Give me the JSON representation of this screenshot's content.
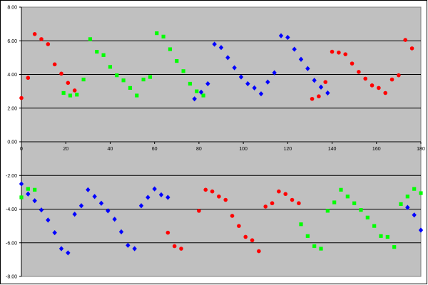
{
  "chart_data": {
    "type": "scatter",
    "title": "",
    "xlabel": "",
    "ylabel": "",
    "xlim": [
      0,
      180
    ],
    "ylim": [
      -8,
      8
    ],
    "x_ticks": [
      0,
      20,
      40,
      60,
      80,
      100,
      120,
      140,
      160,
      180
    ],
    "y_ticks": [
      8,
      6,
      4,
      2,
      0,
      -2,
      -4,
      -6,
      -8
    ],
    "y_tick_labels": [
      "8.00",
      "6.00",
      "4.00",
      "2.00",
      "0.00",
      "-2.00",
      "-4.00",
      "-6.00",
      "-8.00"
    ],
    "grid": "horizontal major gridlines",
    "legend": "none",
    "plot_background": "#c0c0c0",
    "series": [
      {
        "color": "#ff0000",
        "marker": "circle",
        "points": [
          [
            0,
            2.6
          ],
          [
            3,
            3.8
          ],
          [
            6,
            6.4
          ],
          [
            9,
            6.1
          ],
          [
            12,
            5.8
          ],
          [
            15,
            4.6
          ],
          [
            18,
            4.05
          ],
          [
            21,
            3.5
          ],
          [
            24,
            3.05
          ],
          [
            80,
            -4.1
          ],
          [
            83,
            -2.85
          ],
          [
            86,
            -2.95
          ],
          [
            89,
            -3.25
          ],
          [
            92,
            -3.45
          ],
          [
            95,
            -4.4
          ],
          [
            98,
            -5.0
          ],
          [
            101,
            -5.65
          ],
          [
            104,
            -5.85
          ],
          [
            107,
            -6.5
          ],
          [
            110,
            -3.85
          ],
          [
            113,
            -3.65
          ],
          [
            116,
            -2.95
          ],
          [
            119,
            -3.1
          ],
          [
            122,
            -3.45
          ],
          [
            125,
            -3.65
          ],
          [
            66,
            -5.4
          ],
          [
            69,
            -6.2
          ],
          [
            72,
            -6.35
          ],
          [
            131,
            2.55
          ],
          [
            134,
            2.7
          ],
          [
            137,
            3.55
          ],
          [
            140,
            5.35
          ],
          [
            143,
            5.3
          ],
          [
            146,
            5.2
          ],
          [
            149,
            4.65
          ],
          [
            152,
            4.15
          ],
          [
            155,
            3.75
          ],
          [
            158,
            3.35
          ],
          [
            161,
            3.2
          ],
          [
            164,
            2.9
          ],
          [
            167,
            3.7
          ],
          [
            170,
            3.95
          ],
          [
            173,
            6.05
          ],
          [
            176,
            5.55
          ]
        ]
      },
      {
        "color": "#00ff00",
        "marker": "square",
        "points": [
          [
            19,
            2.9
          ],
          [
            22,
            2.75
          ],
          [
            25,
            2.8
          ],
          [
            28,
            3.7
          ],
          [
            31,
            6.1
          ],
          [
            34,
            5.35
          ],
          [
            37,
            5.15
          ],
          [
            40,
            4.45
          ],
          [
            43,
            3.95
          ],
          [
            46,
            3.65
          ],
          [
            49,
            3.2
          ],
          [
            52,
            2.75
          ],
          [
            55,
            3.7
          ],
          [
            58,
            3.85
          ],
          [
            61,
            6.45
          ],
          [
            64,
            6.25
          ],
          [
            67,
            5.5
          ],
          [
            70,
            4.8
          ],
          [
            73,
            4.2
          ],
          [
            76,
            3.45
          ],
          [
            79,
            3.0
          ],
          [
            82,
            2.75
          ],
          [
            0,
            -3.3
          ],
          [
            3,
            -2.8
          ],
          [
            6,
            -2.85
          ],
          [
            126,
            -4.9
          ],
          [
            129,
            -5.6
          ],
          [
            132,
            -6.2
          ],
          [
            135,
            -6.35
          ],
          [
            138,
            -4.1
          ],
          [
            141,
            -3.6
          ],
          [
            144,
            -2.85
          ],
          [
            147,
            -3.25
          ],
          [
            150,
            -3.65
          ],
          [
            153,
            -4.05
          ],
          [
            156,
            -4.5
          ],
          [
            159,
            -5.0
          ],
          [
            162,
            -5.6
          ],
          [
            165,
            -5.65
          ],
          [
            168,
            -6.25
          ],
          [
            171,
            -3.7
          ],
          [
            174,
            -3.25
          ],
          [
            177,
            -2.8
          ],
          [
            180,
            -3.05
          ]
        ]
      },
      {
        "color": "#0000ff",
        "marker": "diamond",
        "points": [
          [
            78,
            2.55
          ],
          [
            81,
            2.95
          ],
          [
            84,
            3.45
          ],
          [
            87,
            5.8
          ],
          [
            90,
            5.6
          ],
          [
            93,
            5.0
          ],
          [
            96,
            4.4
          ],
          [
            99,
            3.85
          ],
          [
            102,
            3.45
          ],
          [
            105,
            3.2
          ],
          [
            108,
            2.85
          ],
          [
            111,
            3.55
          ],
          [
            114,
            4.1
          ],
          [
            117,
            6.3
          ],
          [
            120,
            6.2
          ],
          [
            123,
            5.5
          ],
          [
            126,
            4.9
          ],
          [
            129,
            4.35
          ],
          [
            132,
            3.65
          ],
          [
            135,
            3.25
          ],
          [
            138,
            2.9
          ],
          [
            0,
            -2.5
          ],
          [
            3,
            -3.1
          ],
          [
            6,
            -3.5
          ],
          [
            9,
            -4.05
          ],
          [
            12,
            -4.65
          ],
          [
            15,
            -5.4
          ],
          [
            18,
            -6.35
          ],
          [
            21,
            -6.6
          ],
          [
            24,
            -4.3
          ],
          [
            27,
            -3.8
          ],
          [
            30,
            -2.85
          ],
          [
            33,
            -3.25
          ],
          [
            36,
            -3.65
          ],
          [
            39,
            -4.1
          ],
          [
            42,
            -4.6
          ],
          [
            45,
            -5.35
          ],
          [
            48,
            -6.15
          ],
          [
            51,
            -6.35
          ],
          [
            54,
            -3.8
          ],
          [
            57,
            -3.3
          ],
          [
            60,
            -2.8
          ],
          [
            63,
            -3.15
          ],
          [
            66,
            -3.3
          ],
          [
            174,
            -3.9
          ],
          [
            177,
            -4.35
          ],
          [
            180,
            -5.25
          ]
        ]
      }
    ]
  }
}
